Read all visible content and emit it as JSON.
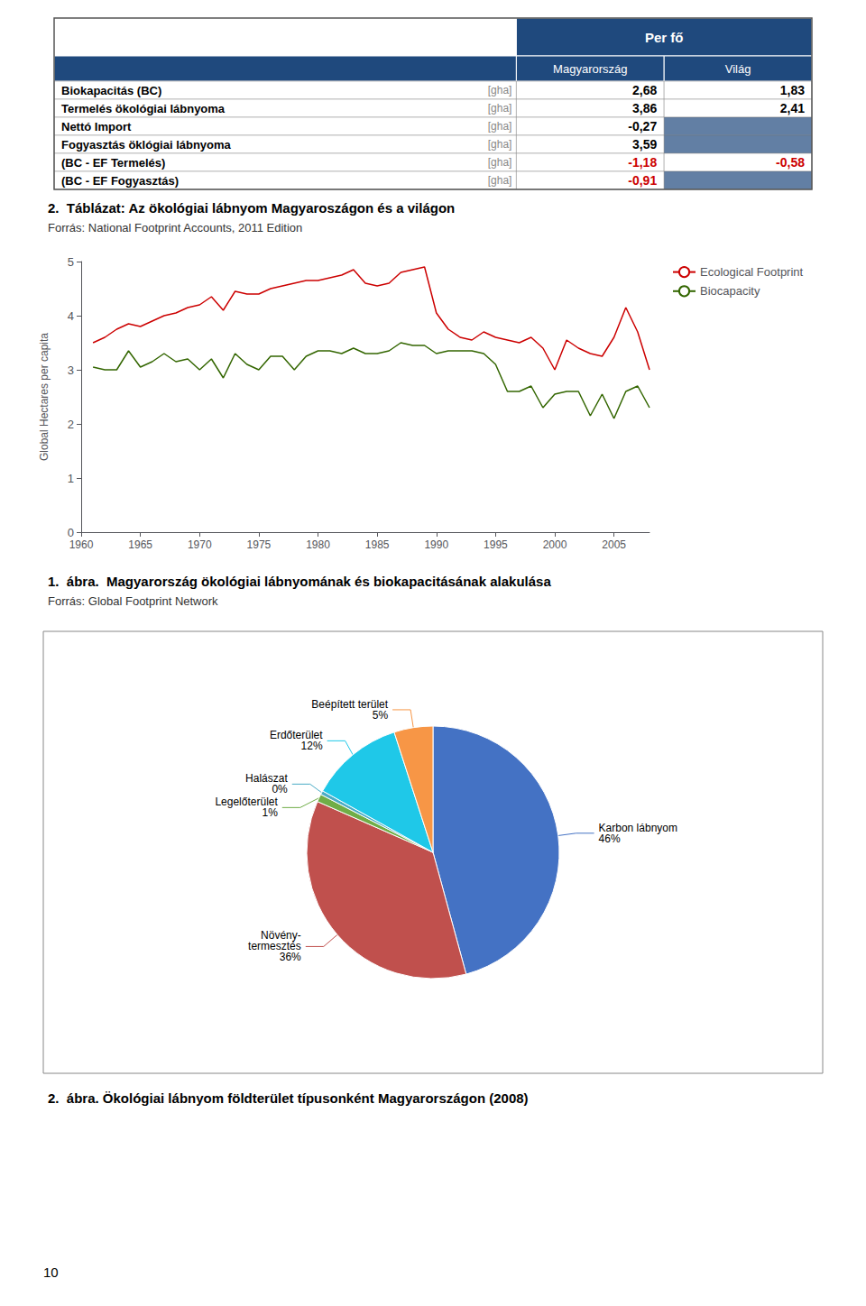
{
  "chart_data": [
    {
      "type": "table",
      "title": "2.  Táblázat: Az ökológiai lábnyom Magyaroszágon és a világon",
      "subtitle": "Forrás: National Footprint Accounts, 2011 Edition",
      "header": "Per fő",
      "color": "#1F497D",
      "categories": [
        "Biokapacitás (BC)",
        "Termelés ökológiai lábnyoma",
        "Nettó Import",
        "Fogyasztás öklógiai lábnyoma",
        "(BC - EF Termelés)",
        "(BC - EF Fogyasztás)"
      ],
      "units": [
        "[gha]",
        "[gha]",
        "[gha]",
        "[gha]",
        "[gha]",
        "[gha]"
      ],
      "series": [
        {
          "name": "Magyarország",
          "values": [
            2.68,
            3.86,
            -0.27,
            3.59,
            -1.18,
            -0.91
          ],
          "value_labels": [
            "2,68",
            "3,86",
            "-0,27",
            "3,59",
            "-1,18",
            "-0,91"
          ],
          "colors": [
            "#000000",
            "#000000",
            "#000000",
            "#000000",
            "#CC0000",
            "#CC0000"
          ]
        },
        {
          "name": "Világ",
          "values": [
            1.83,
            2.41,
            null,
            null,
            -0.58,
            null
          ],
          "value_labels": [
            "1,83",
            "2,41",
            null,
            null,
            "-0,58",
            null
          ],
          "colors": [
            "#000000",
            "#000000",
            "#000000",
            "#000000",
            "#CC0000",
            "#000000"
          ]
        }
      ]
    },
    {
      "type": "line",
      "title": "1.  ábra.  Magyarország ökológiai lábnyomának és biokapacitásának alakulása",
      "subtitle": "Forrás: Global Footprint Network",
      "ylabel": "Global Hectares per capita",
      "x": [
        1961,
        1962,
        1963,
        1964,
        1965,
        1966,
        1967,
        1968,
        1969,
        1970,
        1971,
        1972,
        1973,
        1974,
        1975,
        1976,
        1977,
        1978,
        1979,
        1980,
        1981,
        1982,
        1983,
        1984,
        1985,
        1986,
        1987,
        1988,
        1989,
        1990,
        1991,
        1992,
        1993,
        1994,
        1995,
        1996,
        1997,
        1998,
        1999,
        2000,
        2001,
        2002,
        2003,
        2004,
        2005,
        2006,
        2007,
        2008
      ],
      "series": [
        {
          "name": "Ecological Footprint",
          "color": "#CC0000",
          "values": [
            3.5,
            3.6,
            3.75,
            3.85,
            3.8,
            3.9,
            4.0,
            4.05,
            4.15,
            4.2,
            4.35,
            4.1,
            4.45,
            4.4,
            4.4,
            4.5,
            4.55,
            4.6,
            4.65,
            4.65,
            4.7,
            4.75,
            4.85,
            4.6,
            4.55,
            4.6,
            4.8,
            4.85,
            4.9,
            4.05,
            3.75,
            3.6,
            3.55,
            3.7,
            3.6,
            3.55,
            3.5,
            3.6,
            3.4,
            3.0,
            3.55,
            3.4,
            3.3,
            3.25,
            3.6,
            4.15,
            3.7,
            3.0
          ]
        },
        {
          "name": "Biocapacity",
          "color": "#336600",
          "values": [
            3.05,
            3.0,
            3.0,
            3.35,
            3.05,
            3.15,
            3.3,
            3.15,
            3.2,
            3.0,
            3.2,
            2.85,
            3.3,
            3.1,
            3.0,
            3.25,
            3.25,
            3.0,
            3.25,
            3.35,
            3.35,
            3.3,
            3.4,
            3.3,
            3.3,
            3.35,
            3.5,
            3.45,
            3.45,
            3.3,
            3.35,
            3.35,
            3.35,
            3.3,
            3.1,
            2.6,
            2.6,
            2.7,
            2.3,
            2.55,
            2.6,
            2.6,
            2.15,
            2.55,
            2.1,
            2.6,
            2.7,
            2.3
          ]
        }
      ],
      "xlim": [
        1960,
        2008
      ],
      "xticks": [
        1960,
        1965,
        1970,
        1975,
        1980,
        1985,
        1990,
        1995,
        2000,
        2005
      ],
      "ylim": [
        0,
        5
      ],
      "yticks": [
        0,
        1,
        2,
        3,
        4,
        5
      ],
      "legend": "right",
      "grid": false
    },
    {
      "type": "pie",
      "title": "2.  ábra. Ökológiai lábnyom földterület típusonként Magyarországon (2008)",
      "categories": [
        "Karbon lábnyom",
        "Növény-\ntermesztés",
        "Legelőterület",
        "Halászat",
        "Erdőterület",
        "Beépített terület"
      ],
      "values": [
        46,
        36,
        1,
        0.5,
        12,
        5
      ],
      "value_labels": [
        "46%",
        "36%",
        "1%",
        "0%",
        "12%",
        "5%"
      ],
      "colors": [
        "#4472C4",
        "#C0504D",
        "#70AD47",
        "#4BACC6",
        "#1FC8E8",
        "#F79646"
      ],
      "data_labels": true
    }
  ],
  "page_number": "10"
}
